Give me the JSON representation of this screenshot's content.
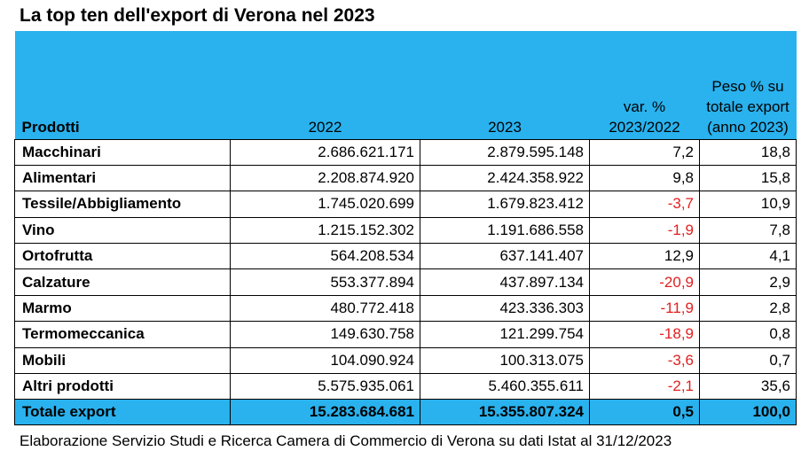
{
  "title": "La top ten dell'export di Verona nel 2023",
  "table": {
    "headers": {
      "product": "Prodotti",
      "y2022": "2022",
      "y2023": "2023",
      "var_line1": "var. %",
      "var_line2": "2023/2022",
      "weight_line1": "Peso % su",
      "weight_line2": "totale export",
      "weight_line3": "(anno 2023)"
    },
    "rows": [
      {
        "product": "Macchinari",
        "y2022": "2.686.621.171",
        "y2023": "2.879.595.148",
        "var": "7,2",
        "weight": "18,8"
      },
      {
        "product": "Alimentari",
        "y2022": "2.208.874.920",
        "y2023": "2.424.358.922",
        "var": "9,8",
        "weight": "15,8"
      },
      {
        "product": "Tessile/Abbigliamento",
        "y2022": "1.745.020.699",
        "y2023": "1.679.823.412",
        "var": "-3,7",
        "weight": "10,9"
      },
      {
        "product": "Vino",
        "y2022": "1.215.152.302",
        "y2023": "1.191.686.558",
        "var": "-1,9",
        "weight": "7,8"
      },
      {
        "product": "Ortofrutta",
        "y2022": "564.208.534",
        "y2023": "637.141.407",
        "var": "12,9",
        "weight": "4,1"
      },
      {
        "product": "Calzature",
        "y2022": "553.377.894",
        "y2023": "437.897.134",
        "var": "-20,9",
        "weight": "2,9"
      },
      {
        "product": "Marmo",
        "y2022": "480.772.418",
        "y2023": "423.336.303",
        "var": "-11,9",
        "weight": "2,8"
      },
      {
        "product": "Termomeccanica",
        "y2022": "149.630.758",
        "y2023": "121.299.754",
        "var": "-18,9",
        "weight": "0,8"
      },
      {
        "product": "Mobili",
        "y2022": "104.090.924",
        "y2023": "100.313.075",
        "var": "-3,6",
        "weight": "0,7"
      },
      {
        "product": "Altri prodotti",
        "y2022": "5.575.935.061",
        "y2023": "5.460.355.611",
        "var": "-2,1",
        "weight": "35,6"
      }
    ],
    "total": {
      "product": "Totale export",
      "y2022": "15.283.684.681",
      "y2023": "15.355.807.324",
      "var": "0,5",
      "weight": "100,0"
    }
  },
  "footnote": "Elaborazione Servizio Studi e Ricerca Camera di Commercio di Verona su dati Istat al 31/12/2023",
  "colors": {
    "header_background": "#29b2ee",
    "negative_value": "#e02020"
  }
}
